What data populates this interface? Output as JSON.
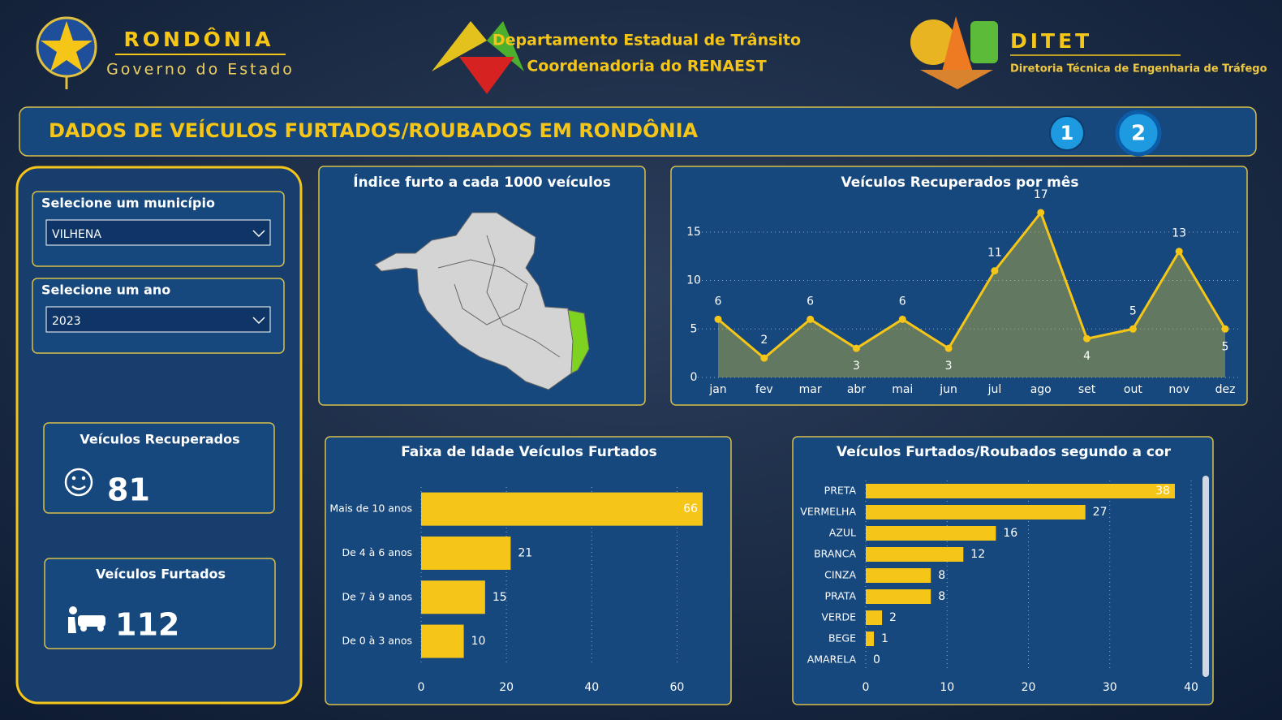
{
  "header": {
    "state_name": "RONDÔNIA",
    "state_sub": "Governo do Estado",
    "dept_line1": "Departamento Estadual de Trânsito",
    "dept_line2": "Coordenadoria do RENAEST",
    "ditet": "DITET",
    "ditet_sub": "Diretoria Técnica de Engenharia de Tráfego"
  },
  "title": "DADOS DE VEÍCULOS FURTADOS/ROUBADOS EM RONDÔNIA",
  "pages": [
    "1",
    "2"
  ],
  "filters": [
    {
      "label": "Selecione um município",
      "value": "VILHENA"
    },
    {
      "label": "Selecione um ano",
      "value": "2023"
    }
  ],
  "cards": [
    {
      "label": "Veículos Recuperados",
      "value": 81
    },
    {
      "label": "Veículos Furtados",
      "value": 112
    }
  ],
  "map": {
    "title": "Índice furto a cada 1000 veículos"
  },
  "chart_data": [
    {
      "type": "line",
      "title": "Veículos Recuperados por mês",
      "categories": [
        "jan",
        "fev",
        "mar",
        "abr",
        "mai",
        "jun",
        "jul",
        "ago",
        "set",
        "out",
        "nov",
        "dez"
      ],
      "values": [
        6,
        2,
        6,
        3,
        6,
        3,
        11,
        17,
        4,
        5,
        13,
        5
      ],
      "color": "#f5c518",
      "ylim": [
        0,
        18
      ],
      "yticks": [
        0,
        5,
        10,
        15
      ],
      "grid": true
    },
    {
      "type": "hbar",
      "title": "Faixa de Idade Veículos Furtados",
      "categories": [
        "Mais de 10 anos",
        "De 4 à 6 anos",
        "De 7 à 9 anos",
        "De 0 à 3 anos"
      ],
      "values": [
        66,
        21,
        15,
        10
      ],
      "color": "#f5c518",
      "xlim": [
        0,
        70
      ],
      "xticks": [
        0,
        20,
        40,
        60
      ],
      "grid": true
    },
    {
      "type": "hbar",
      "title": "Veículos Furtados/Roubados segundo a cor",
      "categories": [
        "PRETA",
        "VERMELHA",
        "AZUL",
        "BRANCA",
        "CINZA",
        "PRATA",
        "VERDE",
        "BEGE",
        "AMARELA"
      ],
      "values": [
        38,
        27,
        16,
        12,
        8,
        8,
        2,
        1,
        0
      ],
      "color": "#f5c518",
      "xlim": [
        0,
        40
      ],
      "xticks": [
        0,
        10,
        20,
        30,
        40
      ],
      "grid": true
    }
  ]
}
